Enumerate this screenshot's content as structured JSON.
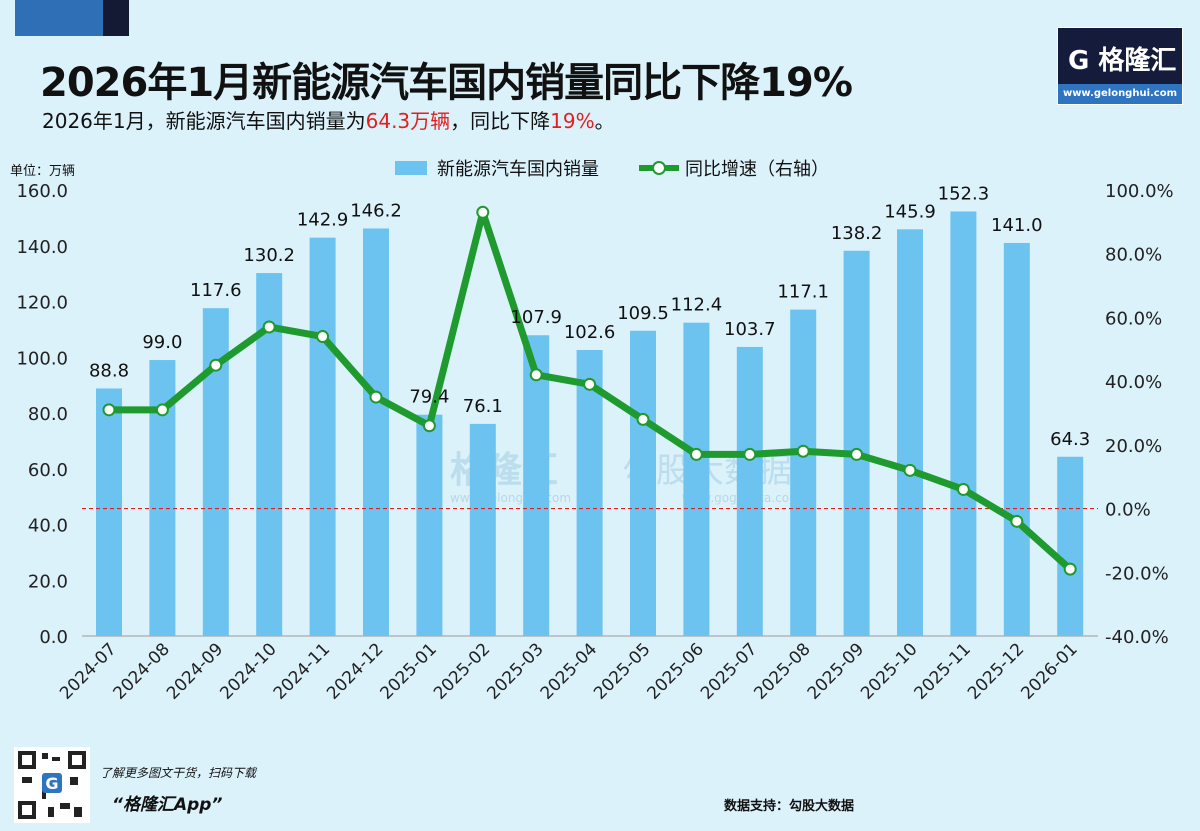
{
  "header": {
    "title": "2026年1月新能源汽车国内销量同比下降19%",
    "subtitle_parts": [
      "2026年1月，新能源汽车国内销量为",
      "64.3万辆",
      "，同比下降",
      "19%",
      "。"
    ]
  },
  "logo": {
    "text": "格隆汇",
    "url": "www.gelonghui.com"
  },
  "watermarks": [
    "格隆汇",
    "www.gelonghui.com",
    "勾股大数据",
    "www.gogudata.com"
  ],
  "colors": {
    "bar": "#6cc3f0",
    "line": "#1f9a2e",
    "zero_line": "#e02020",
    "background": "#dcf2fb",
    "highlight": "#e02020"
  },
  "chart_data": {
    "type": "bar+line",
    "unit_label": "单位：万辆",
    "categories": [
      "2024-07",
      "2024-08",
      "2024-09",
      "2024-10",
      "2024-11",
      "2024-12",
      "2025-01",
      "2025-02",
      "2025-03",
      "2025-04",
      "2025-05",
      "2025-06",
      "2025-07",
      "2025-08",
      "2025-09",
      "2025-10",
      "2025-11",
      "2025-12",
      "2026-01"
    ],
    "series": [
      {
        "name": "新能源汽车国内销量",
        "type": "bar",
        "axis": "left",
        "values": [
          88.8,
          99.0,
          117.6,
          130.2,
          142.9,
          146.2,
          79.4,
          76.1,
          107.9,
          102.6,
          109.5,
          112.4,
          103.7,
          117.1,
          138.2,
          145.9,
          152.3,
          141.0,
          64.3
        ],
        "labels": [
          "88.8",
          "99.0",
          "117.6",
          "130.2",
          "142.9",
          "146.2",
          "79.4",
          "76.1",
          "107.9",
          "102.6",
          "109.5",
          "112.4",
          "103.7",
          "117.1",
          "138.2",
          "145.9",
          "152.3",
          "141.0",
          "64.3"
        ]
      },
      {
        "name": "同比增速（右轴）",
        "type": "line",
        "axis": "right",
        "values": [
          31,
          31,
          45,
          57,
          54,
          35,
          26,
          93,
          42,
          39,
          28,
          17,
          17,
          18,
          17,
          12,
          6,
          -4,
          -19
        ]
      }
    ],
    "left_axis": {
      "ylim": [
        0,
        160
      ],
      "ticks": [
        "0.0",
        "20.0",
        "40.0",
        "60.0",
        "80.0",
        "100.0",
        "120.0",
        "140.0",
        "160.0"
      ]
    },
    "right_axis": {
      "ylim": [
        -40,
        100
      ],
      "ticks": [
        "-40.0%",
        "-20.0%",
        "0.0%",
        "20.0%",
        "40.0%",
        "60.0%",
        "80.0%",
        "100.0%"
      ]
    },
    "reference_line": {
      "axis": "right",
      "value": 0,
      "style": "dashed"
    },
    "grid": false,
    "legend": "top-center"
  },
  "footer": {
    "qr_caption": "了解更多图文干货，扫码下载",
    "app_name": "“格隆汇App”",
    "source": "数据支持：勾股大数据"
  }
}
